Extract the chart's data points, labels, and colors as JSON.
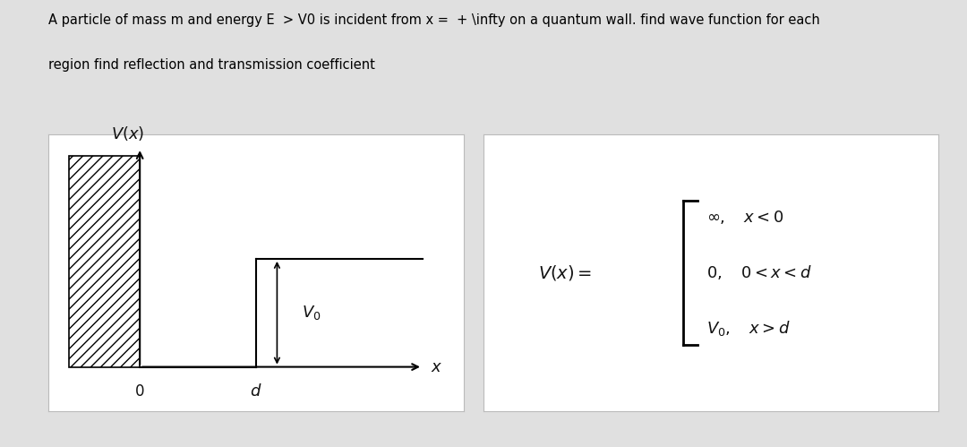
{
  "title_line1": "A particle of mass m and energy E  > V0 is incident from x =  + \\infty on a quantum wall. find wave function for each",
  "title_line2": "region find reflection and transmission coefficient",
  "bg_color": "#e0e0e0",
  "box_bg": "#ffffff",
  "box_border": "#aaaaaa",
  "text_color": "#111111",
  "axis_color": "#111111"
}
